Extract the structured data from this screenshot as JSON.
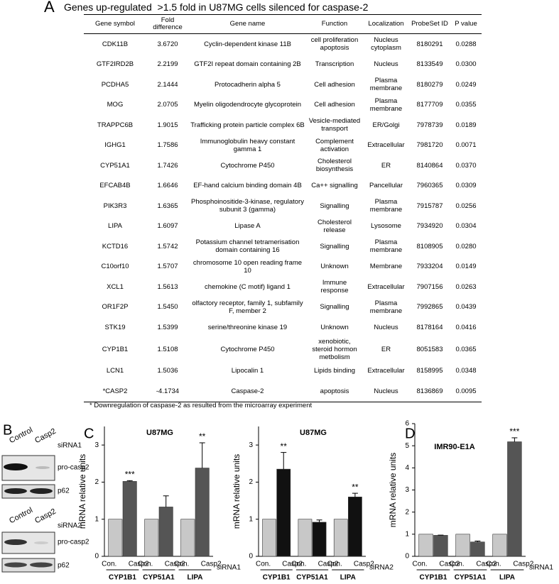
{
  "panel_labels": [
    "A",
    "B",
    "C",
    "D"
  ],
  "table": {
    "title": "Genes up-regulated  >1.5 fold in U87MG cells silenced for caspase-2",
    "header": [
      "Gene symbol",
      "Fold difference",
      "Gene name",
      "Function",
      "Localization",
      "ProbeSet ID",
      "P value"
    ],
    "rows": [
      [
        "CDK11B",
        "3.6720",
        "Cyclin-dependent kinase 11B",
        "cell proliferation apoptosis",
        "Nucleus cytoplasm",
        "8180291",
        "0.0288"
      ],
      [
        "GTF2IRD2B",
        "2.2199",
        "GTF2I repeat domain containing 2B",
        "Transcription",
        "Nucleus",
        "8133549",
        "0.0300"
      ],
      [
        "PCDHA5",
        "2.1444",
        "Protocadherin alpha 5",
        "Cell adhesion",
        "Plasma membrane",
        "8180279",
        "0.0249"
      ],
      [
        "MOG",
        "2.0705",
        "Myelin oligodendrocyte glycoprotein",
        "Cell adhesion",
        "Plasma membrane",
        "8177709",
        "0.0355"
      ],
      [
        "TRAPPC6B",
        "1.9015",
        "Trafficking protein particle complex 6B",
        "Vesicle-mediated transport",
        "ER/Golgi",
        "7978739",
        "0.0189"
      ],
      [
        "IGHG1",
        "1.7586",
        "Immunoglobulin heavy constant gamma 1",
        "Complement activation",
        "Extracellular",
        "7981720",
        "0.0071"
      ],
      [
        "CYP51A1",
        "1.7426",
        "Cytochrome P450",
        "Cholesterol biosynthesis",
        "ER",
        "8140864",
        "0.0370"
      ],
      [
        "EFCAB4B",
        "1.6646",
        "EF-hand calcium binding domain 4B",
        "Ca++ signalling",
        "Pancellular",
        "7960365",
        "0.0309"
      ],
      [
        "PIK3R3",
        "1.6365",
        "Phosphoinositide-3-kinase, regulatory subunit 3 (gamma)",
        "Signalling",
        "Plasma membrane",
        "7915787",
        "0.0256"
      ],
      [
        "LIPA",
        "1.6097",
        "Lipase A",
        "Cholesterol release",
        "Lysosome",
        "7934920",
        "0.0304"
      ],
      [
        "KCTD16",
        "1.5742",
        "Potassium channel tetramerisation domain containing 16",
        "Signalling",
        "Plasma membrane",
        "8108905",
        "0.0280"
      ],
      [
        "C10orf10",
        "1.5707",
        "chromosome 10 open reading frame 10",
        "Unknown",
        "Membrane",
        "7933204",
        "0.0149"
      ],
      [
        "XCL1",
        "1.5613",
        "chemokine (C motif) ligand 1",
        "Immune response",
        "Extracellular",
        "7907156",
        "0.0263"
      ],
      [
        "OR1F2P",
        "1.5450",
        "olfactory receptor, family 1, subfamily F, member 2",
        "Signalling",
        "Plasma membrane",
        "7992865",
        "0.0439"
      ],
      [
        "STK19",
        "1.5399",
        "serine/threonine kinase 19",
        "Unknown",
        "Nucleus",
        "8178164",
        "0.0416"
      ],
      [
        "CYP1B1",
        "1.5108",
        "Cytochrome P450",
        "xenobiotic, steroid hormon metbolism",
        "ER",
        "8051583",
        "0.0365"
      ],
      [
        "LCN1",
        "1.5036",
        "Lipocalin 1",
        "Lipids binding",
        "Extracellular",
        "8158995",
        "0.0348"
      ],
      [
        "*CASP2",
        "-4.1734",
        "Caspase-2",
        "apoptosis",
        "Nucleus",
        "8136869",
        "0.0095"
      ]
    ],
    "footnote": "* Downregulation of caspase-2 as resulted from the microarray experiment"
  },
  "blots": [
    {
      "lanes": [
        "Control",
        "Casp2"
      ],
      "condition": "siRNA1",
      "bands": [
        "pro-casp2",
        "p62"
      ]
    },
    {
      "lanes": [
        "Control",
        "Casp2"
      ],
      "condition": "siRNA2",
      "bands": [
        "pro-casp2",
        "p62"
      ]
    }
  ],
  "chart_data": [
    {
      "type": "bar",
      "title": "U87MG",
      "ylabel": "mRNA relative units",
      "condition": "siRNA1",
      "categories": [
        "CYP1B1",
        "CYP51A1",
        "LIPA"
      ],
      "series": [
        {
          "name": "Con.",
          "color": "#c8c8c8",
          "values": [
            1,
            1,
            1
          ]
        },
        {
          "name": "Casp2",
          "color": "#555555",
          "values": [
            2.02,
            1.33,
            2.38
          ],
          "errors": [
            0.02,
            0.3,
            0.68
          ]
        }
      ],
      "significance": [
        "***",
        null,
        "**"
      ],
      "ylim": [
        0,
        3.5
      ],
      "yticks": [
        0,
        1,
        2,
        3
      ]
    },
    {
      "type": "bar",
      "title": "U87MG",
      "ylabel": "mRNA relative units",
      "condition": "siRNA2",
      "categories": [
        "CYP1B1",
        "CYP51A1",
        "LIPA"
      ],
      "series": [
        {
          "name": "Con.",
          "color": "#c8c8c8",
          "values": [
            1,
            1,
            1
          ]
        },
        {
          "name": "Casp2",
          "color": "#111111",
          "values": [
            2.35,
            0.92,
            1.6
          ],
          "errors": [
            0.45,
            0.06,
            0.1
          ]
        }
      ],
      "significance": [
        "**",
        null,
        "**"
      ],
      "ylim": [
        0,
        3.5
      ],
      "yticks": [
        0,
        1,
        2,
        3
      ]
    },
    {
      "type": "bar",
      "title": "IMR90-E1A",
      "ylabel": "mRNA relative units",
      "condition": "siRNA1",
      "categories": [
        "CYP1B1",
        "CYP51A1",
        "LIPA"
      ],
      "series": [
        {
          "name": "Con.",
          "color": "#c8c8c8",
          "values": [
            1,
            1,
            1
          ]
        },
        {
          "name": "Casp2",
          "color": "#555555",
          "values": [
            0.95,
            0.65,
            5.18
          ],
          "errors": [
            0.01,
            0.04,
            0.18
          ]
        }
      ],
      "significance": [
        null,
        null,
        "***"
      ],
      "ylim": [
        0,
        6
      ],
      "yticks": [
        0,
        1,
        2,
        3,
        4,
        5,
        6
      ]
    }
  ]
}
